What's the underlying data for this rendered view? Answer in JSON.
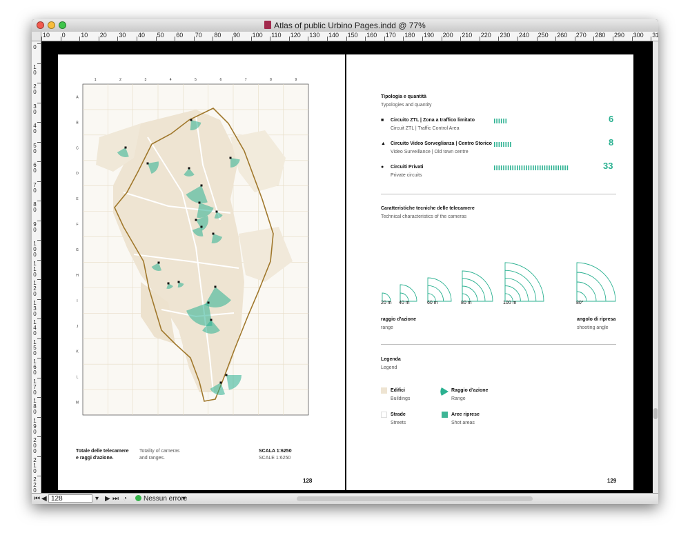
{
  "window": {
    "title": "Atlas of public Urbino Pages.indd @ 77%"
  },
  "ruler": {
    "h_labels": [
      "10",
      "0",
      "10",
      "20",
      "30",
      "40",
      "50",
      "60",
      "70",
      "80",
      "90",
      "100",
      "110",
      "120",
      "130",
      "140",
      "150",
      "160",
      "170",
      "180",
      "190",
      "200",
      "210",
      "220",
      "230",
      "240",
      "250",
      "260",
      "270",
      "280",
      "290",
      "300",
      "31"
    ],
    "v_labels": [
      "0",
      "1\n0",
      "2\n0",
      "3\n0",
      "4\n0",
      "5\n0",
      "6\n0",
      "7\n0",
      "8\n0",
      "9\n0",
      "1\n0\n0",
      "1\n1\n0",
      "1\n2\n0",
      "1\n3\n0",
      "1\n4\n0",
      "1\n5\n0",
      "1\n6\n0",
      "1\n7\n0",
      "1\n8\n0",
      "1\n9\n0",
      "2\n0\n0",
      "2\n1\n0",
      "2\n2\n0"
    ]
  },
  "left_page": {
    "grid_cols": [
      "1",
      "2",
      "3",
      "4",
      "5",
      "6",
      "7",
      "8",
      "9"
    ],
    "grid_rows": [
      "A",
      "B",
      "C",
      "D",
      "E",
      "F",
      "G",
      "H",
      "I",
      "J",
      "K",
      "L",
      "M"
    ],
    "caption_it": "Totale delle telecamere\ne raggi d'azione.",
    "caption_it_l1": "Totale delle telecamere",
    "caption_it_l2": "e raggi d'azione.",
    "caption_en_l1": "Totality of cameras",
    "caption_en_l2": "and ranges.",
    "scale_it": "SCALA 1:6250",
    "scale_en": "SCALE 1:6250",
    "page_number": "128"
  },
  "right_page": {
    "typology": {
      "title_it": "Tipologia e quantità",
      "title_en": "Typologies and quantity",
      "items": [
        {
          "marker": "■",
          "label_it": "Circuito ZTL | Zona a traffico limitato",
          "label_en": "Circuit ZTL | Traffic Control Area",
          "count": "6",
          "bars": 6
        },
        {
          "marker": "▲",
          "label_it": "Circuito Video Sorveglianza | Centro Storico",
          "label_en": "Video Surveillance | Old town centre",
          "count": "8",
          "bars": 8
        },
        {
          "marker": "●",
          "label_it": "Circuiti Privati",
          "label_en": "Private circuits",
          "count": "33",
          "bars": 33
        }
      ]
    },
    "technical": {
      "title_it": "Caratteristiche tecniche delle telecamere",
      "title_en": "Technical characteristics of the cameras",
      "ranges": [
        "20 m",
        "40 m",
        "60 m",
        "80 m",
        "100 m"
      ],
      "angle": "80°",
      "range_label_it": "raggio d'azione",
      "range_label_en": "range",
      "angle_label_it": "angolo di ripresa",
      "angle_label_en": "shooting angle"
    },
    "legend": {
      "title_it": "Legenda",
      "title_en": "Legend",
      "items": [
        {
          "label_it": "Edifici",
          "label_en": "Buildings"
        },
        {
          "label_it": "Raggio d'azione",
          "label_en": "Range"
        },
        {
          "label_it": "Strade",
          "label_en": "Streets"
        },
        {
          "label_it": "Aree riprese",
          "label_en": "Shot areas"
        }
      ]
    },
    "page_number": "129"
  },
  "status": {
    "page": "128",
    "errors": "Nessun errore"
  },
  "colors": {
    "accent": "#2bb191",
    "buildings": "#eee4d2",
    "wall": "#a0782c"
  }
}
